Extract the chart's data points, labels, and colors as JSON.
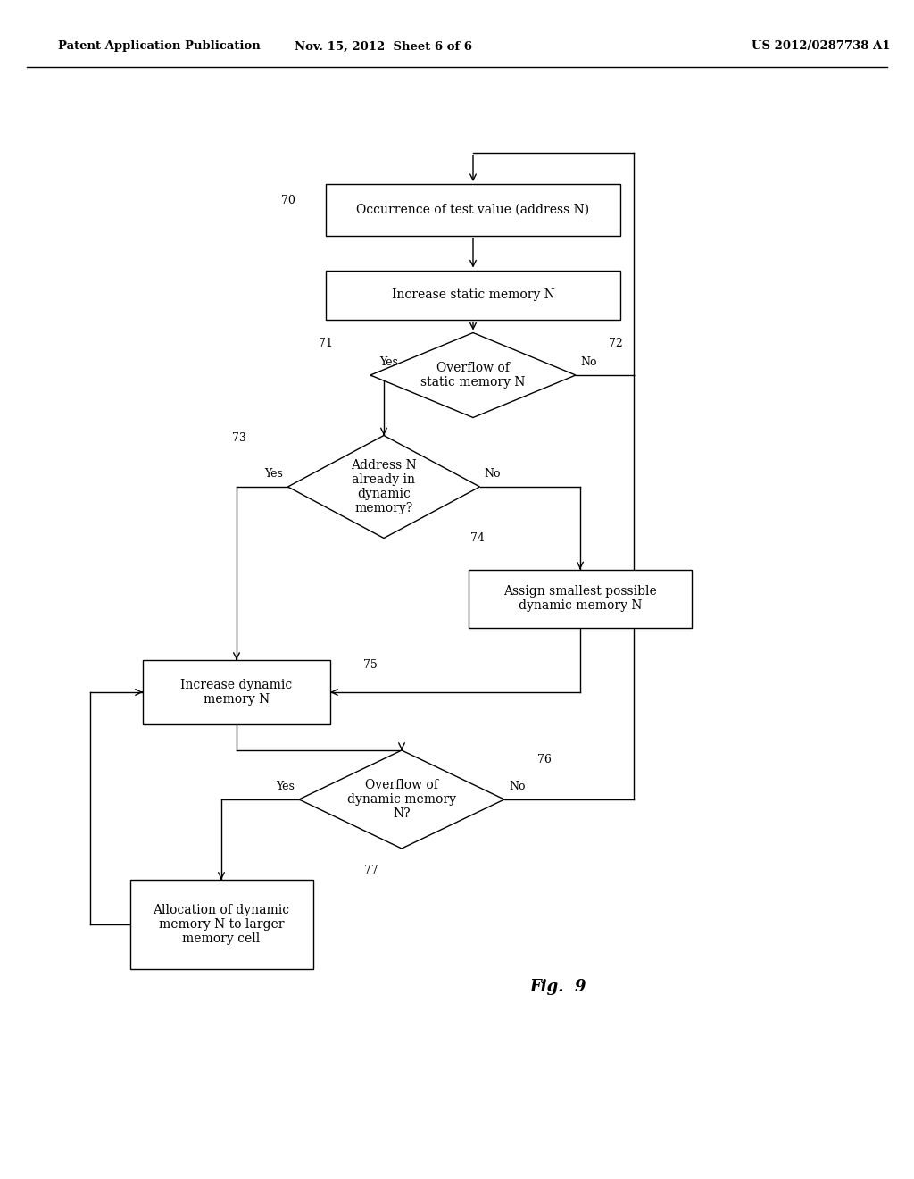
{
  "header_left": "Patent Application Publication",
  "header_mid": "Nov. 15, 2012  Sheet 6 of 6",
  "header_right": "US 2012/0287738 A1",
  "fig_label": "Fig.  9",
  "background_color": "#ffffff"
}
